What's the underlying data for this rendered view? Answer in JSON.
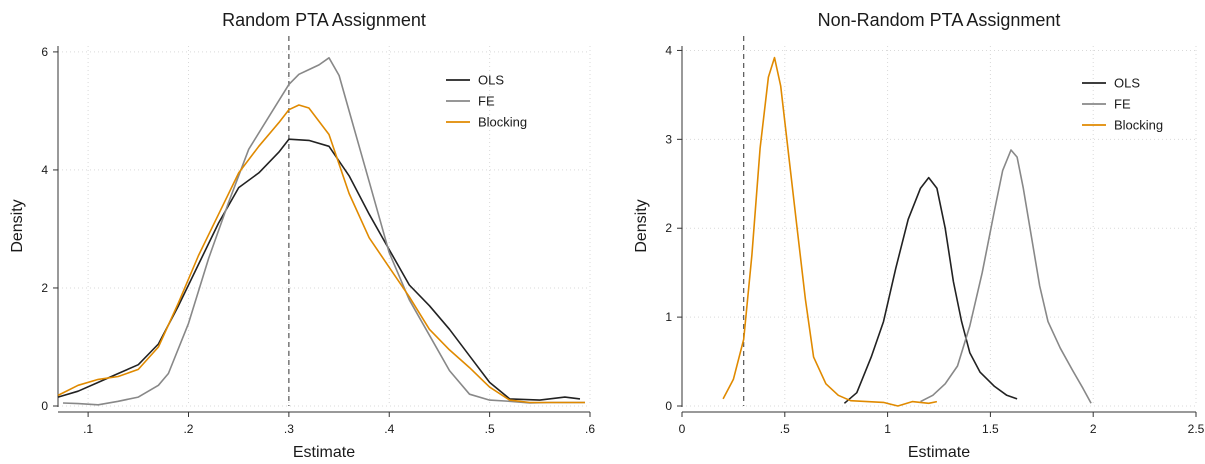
{
  "chart_data": [
    {
      "type": "line",
      "title": "Random PTA Assignment",
      "xlabel": "Estimate",
      "ylabel": "Density",
      "xlim": [
        0.07,
        0.6
      ],
      "ylim": [
        0,
        6.1
      ],
      "x_ticks": [
        0.1,
        0.2,
        0.3,
        0.4,
        0.5,
        0.6
      ],
      "x_tick_labels": [
        ".1",
        ".2",
        ".3",
        ".4",
        ".5",
        ".6"
      ],
      "y_ticks": [
        0,
        2,
        4,
        6
      ],
      "y_tick_labels": [
        "0",
        "2",
        "4",
        "6"
      ],
      "grid": true,
      "legend_position": "top-right",
      "reference_line_x": 0.3,
      "series": [
        {
          "name": "OLS",
          "color": "#222222",
          "points": [
            [
              0.07,
              0.15
            ],
            [
              0.09,
              0.25
            ],
            [
              0.11,
              0.4
            ],
            [
              0.13,
              0.55
            ],
            [
              0.15,
              0.7
            ],
            [
              0.17,
              1.05
            ],
            [
              0.19,
              1.7
            ],
            [
              0.21,
              2.4
            ],
            [
              0.23,
              3.1
            ],
            [
              0.25,
              3.7
            ],
            [
              0.27,
              3.95
            ],
            [
              0.29,
              4.3
            ],
            [
              0.3,
              4.52
            ],
            [
              0.32,
              4.5
            ],
            [
              0.34,
              4.4
            ],
            [
              0.36,
              3.9
            ],
            [
              0.38,
              3.25
            ],
            [
              0.4,
              2.65
            ],
            [
              0.42,
              2.05
            ],
            [
              0.44,
              1.7
            ],
            [
              0.46,
              1.3
            ],
            [
              0.48,
              0.85
            ],
            [
              0.5,
              0.4
            ],
            [
              0.52,
              0.12
            ],
            [
              0.55,
              0.1
            ],
            [
              0.575,
              0.15
            ],
            [
              0.59,
              0.12
            ]
          ]
        },
        {
          "name": "FE",
          "color": "#888888",
          "points": [
            [
              0.075,
              0.05
            ],
            [
              0.09,
              0.04
            ],
            [
              0.11,
              0.02
            ],
            [
              0.13,
              0.08
            ],
            [
              0.15,
              0.15
            ],
            [
              0.17,
              0.35
            ],
            [
              0.18,
              0.55
            ],
            [
              0.2,
              1.4
            ],
            [
              0.22,
              2.5
            ],
            [
              0.24,
              3.45
            ],
            [
              0.26,
              4.35
            ],
            [
              0.28,
              4.9
            ],
            [
              0.3,
              5.45
            ],
            [
              0.31,
              5.62
            ],
            [
              0.32,
              5.7
            ],
            [
              0.33,
              5.78
            ],
            [
              0.34,
              5.9
            ],
            [
              0.35,
              5.6
            ],
            [
              0.36,
              5.0
            ],
            [
              0.38,
              3.8
            ],
            [
              0.4,
              2.6
            ],
            [
              0.42,
              1.8
            ],
            [
              0.44,
              1.2
            ],
            [
              0.46,
              0.6
            ],
            [
              0.48,
              0.2
            ],
            [
              0.5,
              0.1
            ],
            [
              0.52,
              0.08
            ],
            [
              0.54,
              0.05
            ],
            [
              0.56,
              0.06
            ],
            [
              0.595,
              0.06
            ]
          ]
        },
        {
          "name": "Blocking",
          "color": "#E08A00",
          "points": [
            [
              0.07,
              0.18
            ],
            [
              0.09,
              0.35
            ],
            [
              0.11,
              0.45
            ],
            [
              0.13,
              0.5
            ],
            [
              0.15,
              0.62
            ],
            [
              0.17,
              1.0
            ],
            [
              0.19,
              1.75
            ],
            [
              0.21,
              2.55
            ],
            [
              0.23,
              3.25
            ],
            [
              0.25,
              3.95
            ],
            [
              0.27,
              4.4
            ],
            [
              0.29,
              4.8
            ],
            [
              0.3,
              5.02
            ],
            [
              0.31,
              5.1
            ],
            [
              0.32,
              5.05
            ],
            [
              0.34,
              4.6
            ],
            [
              0.36,
              3.6
            ],
            [
              0.38,
              2.85
            ],
            [
              0.4,
              2.35
            ],
            [
              0.42,
              1.85
            ],
            [
              0.44,
              1.3
            ],
            [
              0.46,
              0.95
            ],
            [
              0.48,
              0.65
            ],
            [
              0.5,
              0.32
            ],
            [
              0.52,
              0.1
            ],
            [
              0.54,
              0.06
            ],
            [
              0.57,
              0.06
            ],
            [
              0.595,
              0.06
            ]
          ]
        }
      ]
    },
    {
      "type": "line",
      "title": "Non-Random PTA Assignment",
      "xlabel": "Estimate",
      "ylabel": "Density",
      "xlim": [
        0,
        2.5
      ],
      "ylim": [
        0,
        4.05
      ],
      "x_ticks": [
        0,
        0.5,
        1,
        1.5,
        2,
        2.5
      ],
      "x_tick_labels": [
        "0",
        ".5",
        "1",
        "1.5",
        "2",
        "2.5"
      ],
      "y_ticks": [
        0,
        1,
        2,
        3,
        4
      ],
      "y_tick_labels": [
        "0",
        "1",
        "2",
        "3",
        "4"
      ],
      "grid": true,
      "legend_position": "top-right",
      "reference_line_x": 0.3,
      "series": [
        {
          "name": "OLS",
          "color": "#222222",
          "points": [
            [
              0.79,
              0.03
            ],
            [
              0.85,
              0.15
            ],
            [
              0.92,
              0.55
            ],
            [
              0.98,
              0.95
            ],
            [
              1.04,
              1.55
            ],
            [
              1.1,
              2.1
            ],
            [
              1.16,
              2.45
            ],
            [
              1.2,
              2.57
            ],
            [
              1.24,
              2.45
            ],
            [
              1.28,
              2.0
            ],
            [
              1.32,
              1.4
            ],
            [
              1.36,
              0.95
            ],
            [
              1.4,
              0.6
            ],
            [
              1.45,
              0.38
            ],
            [
              1.52,
              0.22
            ],
            [
              1.58,
              0.12
            ],
            [
              1.63,
              0.08
            ]
          ]
        },
        {
          "name": "FE",
          "color": "#888888",
          "points": [
            [
              1.16,
              0.05
            ],
            [
              1.22,
              0.12
            ],
            [
              1.28,
              0.25
            ],
            [
              1.34,
              0.45
            ],
            [
              1.4,
              0.9
            ],
            [
              1.46,
              1.5
            ],
            [
              1.52,
              2.2
            ],
            [
              1.56,
              2.65
            ],
            [
              1.6,
              2.88
            ],
            [
              1.63,
              2.8
            ],
            [
              1.66,
              2.45
            ],
            [
              1.7,
              1.9
            ],
            [
              1.74,
              1.35
            ],
            [
              1.78,
              0.95
            ],
            [
              1.84,
              0.65
            ],
            [
              1.9,
              0.4
            ],
            [
              1.95,
              0.2
            ],
            [
              1.99,
              0.03
            ]
          ]
        },
        {
          "name": "Blocking",
          "color": "#E08A00",
          "points": [
            [
              0.2,
              0.08
            ],
            [
              0.25,
              0.3
            ],
            [
              0.3,
              0.75
            ],
            [
              0.34,
              1.7
            ],
            [
              0.38,
              2.9
            ],
            [
              0.42,
              3.7
            ],
            [
              0.45,
              3.92
            ],
            [
              0.48,
              3.6
            ],
            [
              0.52,
              2.8
            ],
            [
              0.56,
              2.0
            ],
            [
              0.6,
              1.2
            ],
            [
              0.64,
              0.55
            ],
            [
              0.7,
              0.25
            ],
            [
              0.76,
              0.12
            ],
            [
              0.82,
              0.06
            ],
            [
              0.9,
              0.05
            ],
            [
              0.98,
              0.04
            ],
            [
              1.05,
              0.0
            ],
            [
              1.12,
              0.05
            ],
            [
              1.2,
              0.03
            ],
            [
              1.24,
              0.05
            ]
          ]
        }
      ]
    }
  ]
}
